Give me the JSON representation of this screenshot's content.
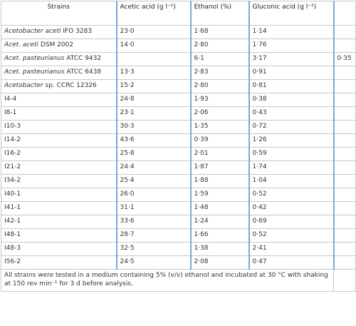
{
  "table": {
    "header": [
      "Strains",
      "Acetic acid (g l⁻¹)",
      "Ethanol (%)",
      "Gluconic acid (g l⁻¹)",
      null
    ],
    "rows": [
      [
        {
          "italic": "Acetobacter aceti",
          "plain": "IFO 3283"
        },
        "23·0",
        "1·68",
        "1·14",
        null
      ],
      [
        {
          "italic": "Acet. aceti",
          "plain": "DSM 2002"
        },
        "14·0",
        "2·80",
        "1·76",
        null
      ],
      [
        {
          "italic": "Acet. pasteurianus",
          "plain": "ATCC 9432"
        },
        null,
        "6·1",
        "3·17",
        "0·35"
      ],
      [
        {
          "italic": "Acet. pasteurianus",
          "plain": "ATCC 6438"
        },
        "13·3",
        "2·83",
        "0·91",
        null
      ],
      [
        {
          "italic": "Acetobacter",
          "plain": "sp. CCRC 12326"
        },
        "15·2",
        "2·80",
        "0·81",
        null
      ],
      [
        "I4-4",
        "24·8",
        "1·93",
        "0·38",
        null
      ],
      [
        "I8-1",
        "23·1",
        "2·06",
        "0·43",
        null
      ],
      [
        "I10-3",
        "30·3",
        "1·35",
        "0·72",
        null
      ],
      [
        "I14-2",
        "43·6",
        "0·39",
        "1·26",
        null
      ],
      [
        "I16-2",
        "25·8",
        "2·01",
        "0·59",
        null
      ],
      [
        "I21-2",
        "24·4",
        "1·87",
        "1·74",
        null
      ],
      [
        "I34-2",
        "25·4",
        "1·88",
        "1·04",
        null
      ],
      [
        "I40-1",
        "26·0",
        "1·59",
        "0·52",
        null
      ],
      [
        "I41-1",
        "31·1",
        "1·48",
        "0·42",
        null
      ],
      [
        "I42-1",
        "33·6",
        "1·24",
        "0·69",
        null
      ],
      [
        "I48-1",
        "28·7",
        "1·66",
        "0·52",
        null
      ],
      [
        "I48-3",
        "32·5",
        "1·38",
        "2·41",
        null
      ],
      [
        "I56-2",
        "24·5",
        "2·08",
        "0·47",
        null
      ]
    ],
    "footnote": "All strains were tested in a medium containing 5% (v/v) ethanol and incubated at 30 °C with shaking at 150 rev min⁻¹ for 3 d before analysis."
  }
}
